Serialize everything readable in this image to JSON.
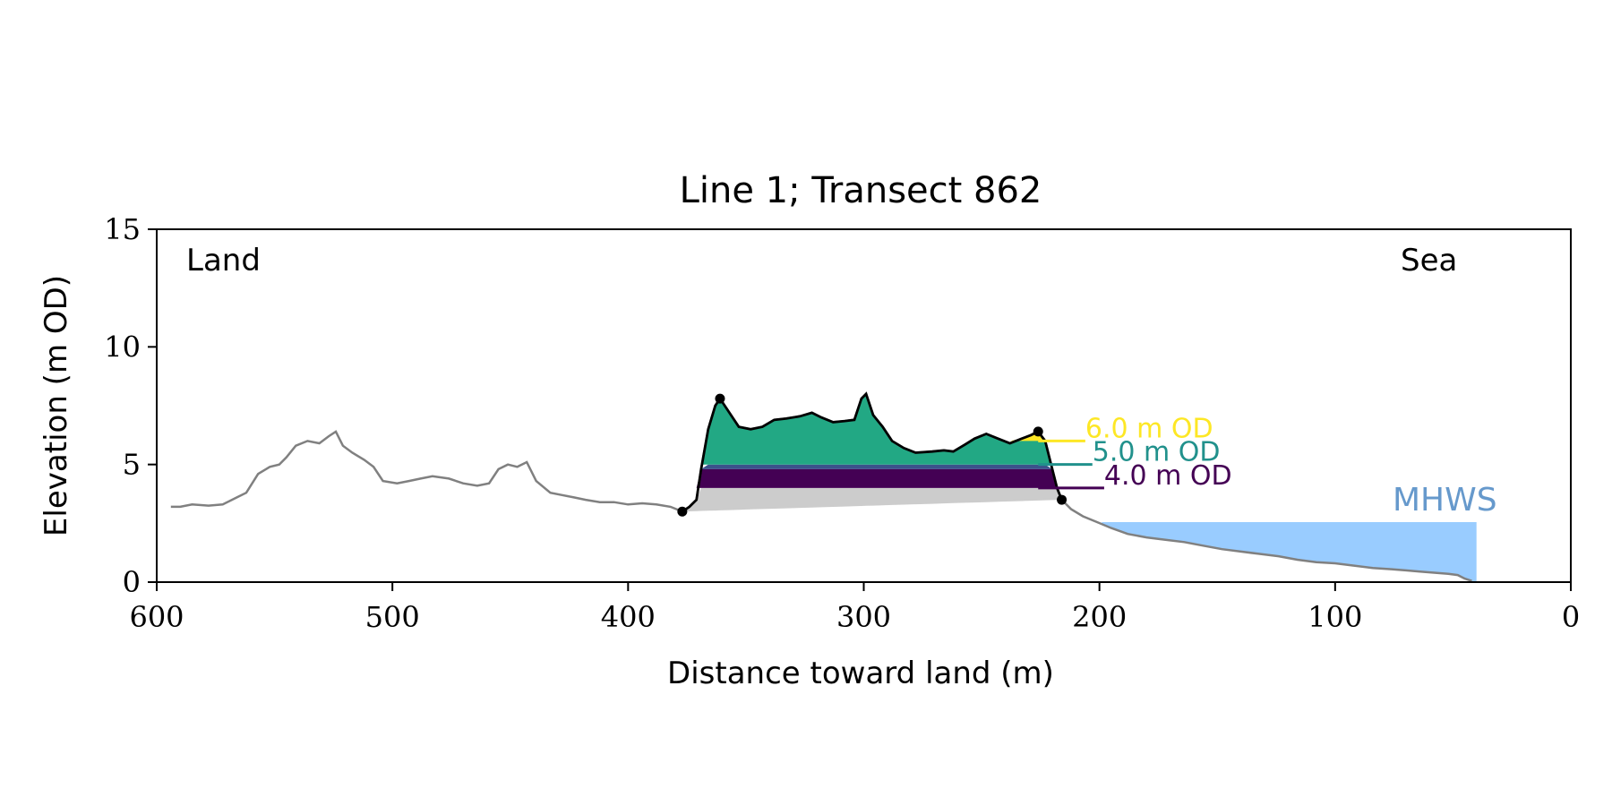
{
  "chart_data": {
    "type": "area",
    "title": "Line 1; Transect 862",
    "xlabel": "Distance toward land (m)",
    "ylabel": "Elevation (m OD)",
    "xlim": [
      600,
      0
    ],
    "ylim": [
      0,
      15
    ],
    "x_ticks": [
      600,
      500,
      400,
      300,
      200,
      100,
      0
    ],
    "y_ticks": [
      0,
      5,
      10,
      15
    ],
    "grid": false,
    "annotations": {
      "land": "Land",
      "sea": "Sea",
      "mhws": "MHWS"
    },
    "colors": {
      "profile": "#808080",
      "dune_outline": "#000000",
      "dune_fill": "#22a884",
      "band_5_4": "#3b528b",
      "band_below_4": "#440154",
      "base_fill": "#cccccc",
      "mhws_fill": "#99ccff",
      "mhws_text": "#6699cc",
      "level_6": "#fde725",
      "level_5": "#21918c",
      "level_4": "#440154"
    },
    "mhws_level": 2.55,
    "mhws_range": [
      199,
      40
    ],
    "levels": [
      {
        "value": 6.0,
        "label": "6.0 m OD",
        "x_range": [
          226,
          206
        ]
      },
      {
        "value": 5.0,
        "label": "5.0 m OD",
        "x_range": [
          226,
          203
        ]
      },
      {
        "value": 4.0,
        "label": "4.0 m OD",
        "x_range": [
          226,
          198
        ]
      }
    ],
    "dune_markers": [
      {
        "x": 377,
        "y": 3.0
      },
      {
        "x": 361,
        "y": 7.8
      },
      {
        "x": 226,
        "y": 6.4
      },
      {
        "x": 216,
        "y": 3.5
      }
    ],
    "profile": [
      [
        594,
        3.2
      ],
      [
        590,
        3.2
      ],
      [
        585,
        3.3
      ],
      [
        578,
        3.25
      ],
      [
        572,
        3.3
      ],
      [
        566,
        3.6
      ],
      [
        562,
        3.8
      ],
      [
        557,
        4.6
      ],
      [
        552,
        4.9
      ],
      [
        548,
        5.0
      ],
      [
        545,
        5.3
      ],
      [
        541,
        5.8
      ],
      [
        536,
        6.0
      ],
      [
        531,
        5.9
      ],
      [
        527,
        6.2
      ],
      [
        524,
        6.4
      ],
      [
        521,
        5.8
      ],
      [
        517,
        5.5
      ],
      [
        512,
        5.2
      ],
      [
        508,
        4.9
      ],
      [
        504,
        4.3
      ],
      [
        498,
        4.2
      ],
      [
        493,
        4.3
      ],
      [
        488,
        4.4
      ],
      [
        483,
        4.5
      ],
      [
        476,
        4.4
      ],
      [
        470,
        4.2
      ],
      [
        464,
        4.1
      ],
      [
        459,
        4.2
      ],
      [
        455,
        4.8
      ],
      [
        451,
        5.0
      ],
      [
        447,
        4.9
      ],
      [
        443,
        5.1
      ],
      [
        439,
        4.3
      ],
      [
        433,
        3.8
      ],
      [
        428,
        3.7
      ],
      [
        423,
        3.6
      ],
      [
        418,
        3.5
      ],
      [
        412,
        3.4
      ],
      [
        406,
        3.4
      ],
      [
        400,
        3.3
      ],
      [
        394,
        3.35
      ],
      [
        388,
        3.3
      ],
      [
        382,
        3.2
      ],
      [
        377,
        3.0
      ],
      [
        374,
        3.2
      ],
      [
        371,
        3.5
      ],
      [
        369,
        4.8
      ],
      [
        366,
        6.5
      ],
      [
        363,
        7.5
      ],
      [
        361,
        7.8
      ],
      [
        357,
        7.2
      ],
      [
        353,
        6.6
      ],
      [
        348,
        6.5
      ],
      [
        343,
        6.6
      ],
      [
        338,
        6.9
      ],
      [
        333,
        6.95
      ],
      [
        327,
        7.05
      ],
      [
        322,
        7.2
      ],
      [
        318,
        7.0
      ],
      [
        313,
        6.8
      ],
      [
        308,
        6.85
      ],
      [
        304,
        6.9
      ],
      [
        301,
        7.8
      ],
      [
        299,
        8.0
      ],
      [
        296,
        7.1
      ],
      [
        292,
        6.6
      ],
      [
        288,
        6.0
      ],
      [
        283,
        5.7
      ],
      [
        278,
        5.5
      ],
      [
        271,
        5.55
      ],
      [
        266,
        5.6
      ],
      [
        262,
        5.55
      ],
      [
        257,
        5.85
      ],
      [
        253,
        6.1
      ],
      [
        248,
        6.3
      ],
      [
        243,
        6.1
      ],
      [
        238,
        5.9
      ],
      [
        233,
        6.1
      ],
      [
        229,
        6.25
      ],
      [
        226,
        6.4
      ],
      [
        223,
        6.0
      ],
      [
        220,
        4.8
      ],
      [
        218,
        4.0
      ],
      [
        216,
        3.5
      ],
      [
        212,
        3.1
      ],
      [
        207,
        2.8
      ],
      [
        201,
        2.55
      ],
      [
        195,
        2.3
      ],
      [
        188,
        2.05
      ],
      [
        180,
        1.9
      ],
      [
        172,
        1.8
      ],
      [
        164,
        1.7
      ],
      [
        156,
        1.55
      ],
      [
        148,
        1.4
      ],
      [
        140,
        1.3
      ],
      [
        132,
        1.2
      ],
      [
        124,
        1.1
      ],
      [
        116,
        0.95
      ],
      [
        108,
        0.85
      ],
      [
        100,
        0.8
      ],
      [
        92,
        0.7
      ],
      [
        84,
        0.6
      ],
      [
        76,
        0.55
      ],
      [
        70,
        0.5
      ],
      [
        64,
        0.45
      ],
      [
        58,
        0.4
      ],
      [
        52,
        0.35
      ],
      [
        48,
        0.3
      ],
      [
        45,
        0.15
      ],
      [
        42,
        0.05
      ]
    ]
  }
}
